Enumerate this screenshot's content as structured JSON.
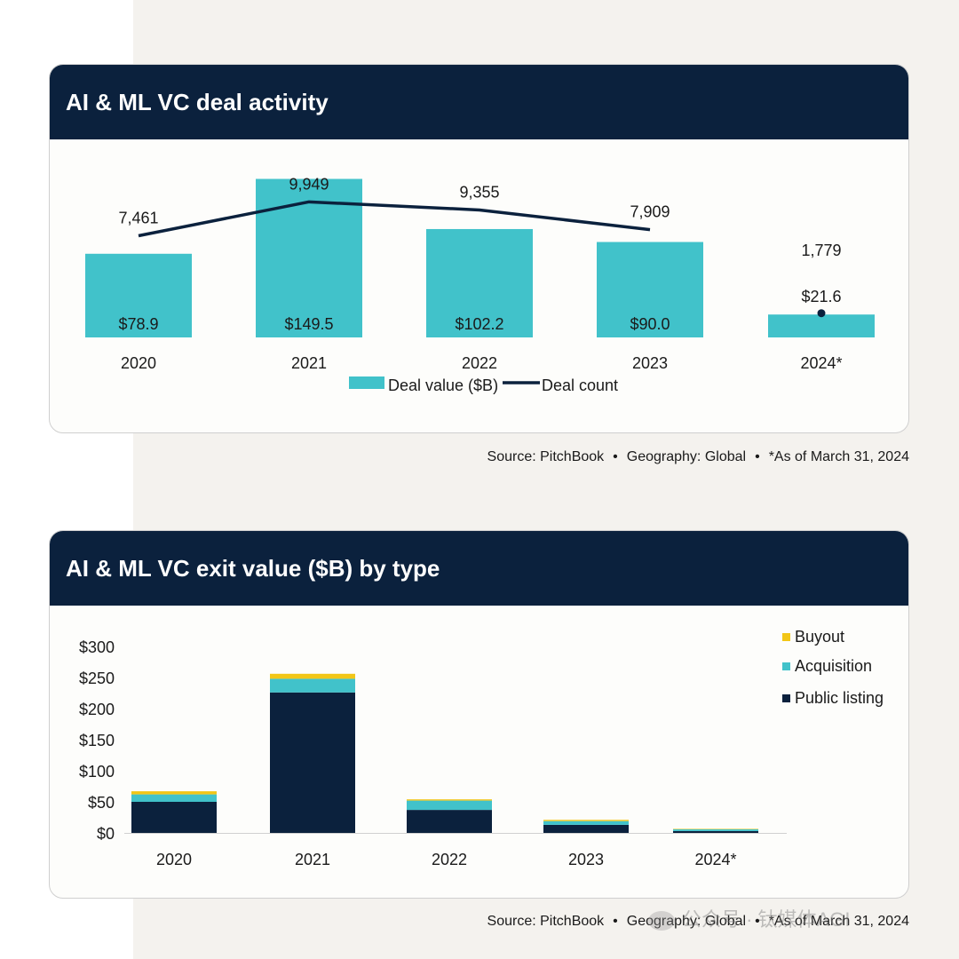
{
  "colors": {
    "header": "#0b213d",
    "teal": "#41c2ca",
    "navy": "#0b213d",
    "yellow": "#f2c617",
    "text": "#1a1a1a"
  },
  "chart_data": [
    {
      "type": "bar",
      "title": "AI & ML VC deal activity",
      "categories": [
        "2020",
        "2021",
        "2022",
        "2023",
        "2024*"
      ],
      "series": [
        {
          "name": "Deal value ($B)",
          "kind": "bar",
          "values": [
            78.9,
            149.5,
            102.2,
            90.0,
            21.6
          ],
          "labels": [
            "$78.9",
            "$149.5",
            "$102.2",
            "$90.0",
            "$21.6"
          ]
        },
        {
          "name": "Deal count",
          "kind": "line",
          "values": [
            7461,
            9949,
            9355,
            7909,
            1779
          ],
          "labels": [
            "7,461",
            "9,949",
            "9,355",
            "7,909",
            "1,779"
          ]
        }
      ],
      "ylim_value": [
        0,
        170
      ],
      "ylim_count": [
        0,
        11600
      ],
      "legend_position": "bottom-center",
      "source": {
        "parts": [
          "Source: PitchBook",
          "Geography: Global",
          "*As of March 31, 2024"
        ],
        "separator": "•"
      }
    },
    {
      "type": "bar",
      "stacked": true,
      "title": "AI & ML VC exit value ($B) by type",
      "categories": [
        "2020",
        "2021",
        "2022",
        "2023",
        "2024*"
      ],
      "series": [
        {
          "name": "Public listing",
          "values": [
            50,
            226,
            37,
            13,
            3
          ]
        },
        {
          "name": "Acquisition",
          "values": [
            12,
            22,
            15,
            6,
            3
          ]
        },
        {
          "name": "Buyout",
          "values": [
            5,
            8,
            2,
            2,
            0.5
          ]
        }
      ],
      "legend_order": [
        "Buyout",
        "Acquisition",
        "Public listing"
      ],
      "ylim": [
        0,
        300
      ],
      "yticks": [
        0,
        50,
        100,
        150,
        200,
        250,
        300
      ],
      "ytick_labels": [
        "$0",
        "$50",
        "$100",
        "$150",
        "$200",
        "$250",
        "$300"
      ],
      "legend_position": "top-right",
      "source": {
        "parts": [
          "Source: PitchBook",
          "Geography: Global",
          "*As of March 31, 2024"
        ],
        "separator": "•"
      }
    }
  ],
  "watermark": {
    "text": "公众号 · 钛媒体AGI"
  }
}
